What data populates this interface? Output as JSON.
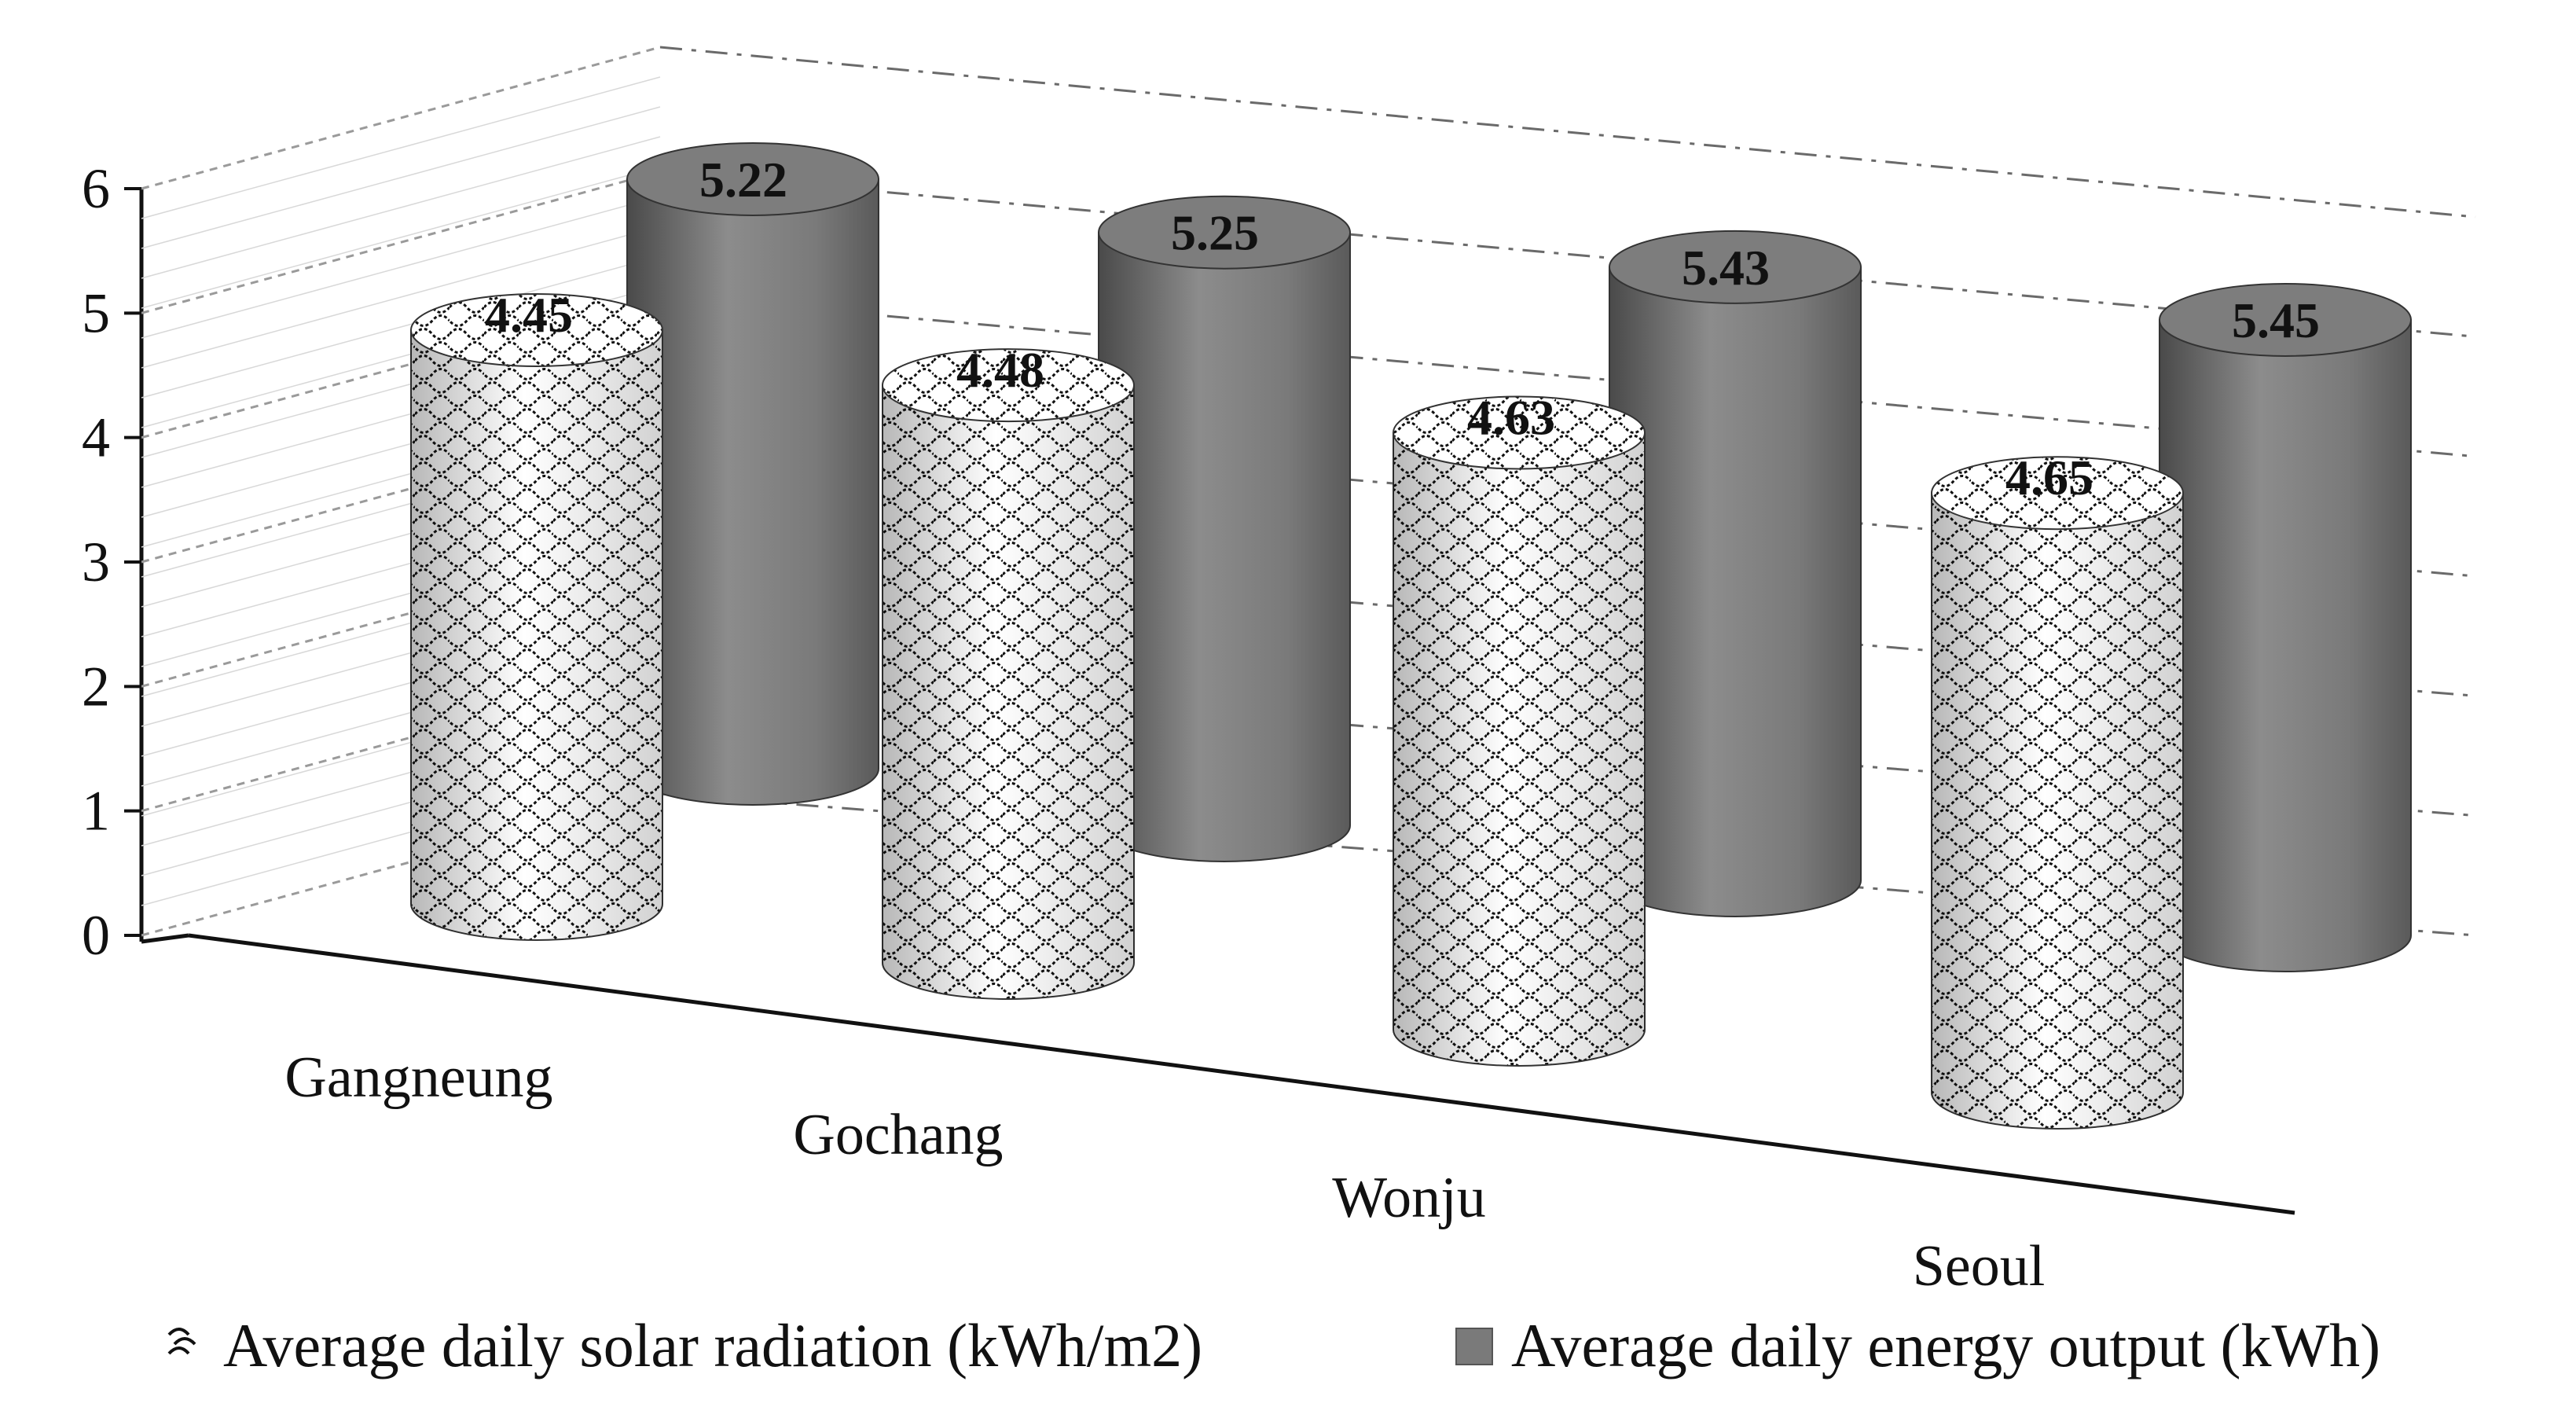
{
  "chart_data": {
    "type": "bar",
    "subtype": "3d-cylinder",
    "title": "",
    "xlabel": "",
    "ylabel": "",
    "ylim": [
      0,
      6
    ],
    "yticks": [
      "0",
      "1",
      "2",
      "3",
      "4",
      "5",
      "6"
    ],
    "categories": [
      "Gangneung",
      "Gochang",
      "Wonju",
      "Seoul"
    ],
    "series": [
      {
        "name": "Average daily solar radiation (kWh/m2)",
        "values": [
          4.45,
          4.48,
          4.63,
          4.65
        ],
        "labels": [
          "4.45",
          "4.48",
          "4.63",
          "4.65"
        ],
        "style": "patterned"
      },
      {
        "name": "Average daily energy output (kWh)",
        "values": [
          5.22,
          5.25,
          5.43,
          5.45
        ],
        "labels": [
          "5.22",
          "5.25",
          "5.43",
          "5.45"
        ],
        "style": "solid",
        "color": "#7a7a7a"
      }
    ],
    "grid": true,
    "legend_position": "bottom"
  }
}
